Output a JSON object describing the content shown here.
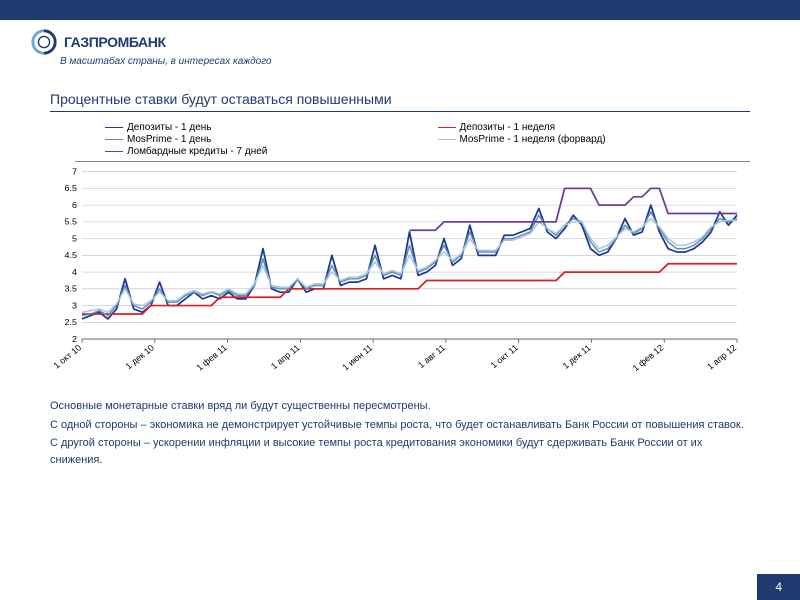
{
  "brand": {
    "name": "ГАЗПРОМБАНК",
    "tagline": "В масштабах страны, в интересах каждого",
    "logo_ring_colors": [
      "#6ba4d9",
      "#1f3a6e"
    ]
  },
  "colors": {
    "primary": "#1f3a6e",
    "grid": "#bfbfbf",
    "bg": "#ffffff"
  },
  "slide_title": "Процентные ставки будут оставаться повышенными",
  "chart": {
    "type": "line",
    "y": {
      "min": 2,
      "max": 7,
      "step": 0.5,
      "ticks": [
        2,
        2.5,
        3,
        3.5,
        4,
        4.5,
        5,
        5.5,
        6,
        6.5,
        7
      ]
    },
    "x_labels": [
      "1 окт 10",
      "1 дек 10",
      "1 фев 11",
      "1 апр 11",
      "1 июн 11",
      "1 авг 11",
      "1 окт 11",
      "1 дек 11",
      "1 фев 12",
      "1 апр 12"
    ],
    "legend_cols": 2,
    "series": [
      {
        "name": "Депозиты - 1 день",
        "color": "#1f3a93",
        "width": 1.8,
        "data": [
          2.6,
          2.7,
          2.8,
          2.6,
          2.9,
          3.8,
          2.9,
          2.8,
          3.0,
          3.7,
          3.0,
          3.0,
          3.2,
          3.4,
          3.2,
          3.3,
          3.2,
          3.4,
          3.2,
          3.2,
          3.6,
          4.7,
          3.5,
          3.4,
          3.4,
          3.8,
          3.4,
          3.5,
          3.5,
          4.5,
          3.6,
          3.7,
          3.7,
          3.8,
          4.8,
          3.8,
          3.9,
          3.8,
          5.2,
          3.9,
          4.0,
          4.2,
          5.0,
          4.2,
          4.4,
          5.4,
          4.5,
          4.5,
          4.5,
          5.1,
          5.1,
          5.2,
          5.3,
          5.9,
          5.2,
          5.0,
          5.3,
          5.7,
          5.4,
          4.7,
          4.5,
          4.6,
          5.0,
          5.6,
          5.1,
          5.2,
          6.0,
          5.2,
          4.7,
          4.6,
          4.6,
          4.7,
          4.9,
          5.2,
          5.8,
          5.4,
          5.7
        ]
      },
      {
        "name": "Депозиты - 1 неделя",
        "color": "#d92121",
        "width": 1.8,
        "data": [
          2.75,
          2.75,
          2.75,
          2.75,
          2.75,
          2.75,
          2.75,
          2.75,
          3.0,
          3.0,
          3.0,
          3.0,
          3.0,
          3.0,
          3.0,
          3.0,
          3.25,
          3.25,
          3.25,
          3.25,
          3.25,
          3.25,
          3.25,
          3.25,
          3.5,
          3.5,
          3.5,
          3.5,
          3.5,
          3.5,
          3.5,
          3.5,
          3.5,
          3.5,
          3.5,
          3.5,
          3.5,
          3.5,
          3.5,
          3.5,
          3.75,
          3.75,
          3.75,
          3.75,
          3.75,
          3.75,
          3.75,
          3.75,
          3.75,
          3.75,
          3.75,
          3.75,
          3.75,
          3.75,
          3.75,
          3.75,
          4.0,
          4.0,
          4.0,
          4.0,
          4.0,
          4.0,
          4.0,
          4.0,
          4.0,
          4.0,
          4.0,
          4.0,
          4.25,
          4.25,
          4.25,
          4.25,
          4.25,
          4.25,
          4.25,
          4.25,
          4.25
        ]
      },
      {
        "name": "MosPrime - 1 день",
        "color": "#5b8db8",
        "width": 1.5,
        "data": [
          2.7,
          2.75,
          2.85,
          2.7,
          3.0,
          3.6,
          3.0,
          2.9,
          3.1,
          3.5,
          3.1,
          3.1,
          3.3,
          3.4,
          3.3,
          3.4,
          3.3,
          3.45,
          3.3,
          3.3,
          3.6,
          4.4,
          3.55,
          3.5,
          3.5,
          3.8,
          3.5,
          3.6,
          3.6,
          4.2,
          3.7,
          3.8,
          3.8,
          3.9,
          4.5,
          3.9,
          4.0,
          3.9,
          4.8,
          4.0,
          4.1,
          4.3,
          4.8,
          4.3,
          4.5,
          5.2,
          4.6,
          4.6,
          4.6,
          5.0,
          5.0,
          5.1,
          5.2,
          5.7,
          5.3,
          5.1,
          5.4,
          5.6,
          5.5,
          4.9,
          4.6,
          4.7,
          5.0,
          5.4,
          5.15,
          5.3,
          5.8,
          5.3,
          4.9,
          4.7,
          4.7,
          4.8,
          5.0,
          5.3,
          5.6,
          5.5,
          5.6
        ]
      },
      {
        "name": "MosPrime - 1 неделя (форвард)",
        "color": "#a8c5dc",
        "width": 1.5,
        "data": [
          2.8,
          2.85,
          2.9,
          2.8,
          3.05,
          3.5,
          3.05,
          3.0,
          3.15,
          3.4,
          3.15,
          3.15,
          3.35,
          3.45,
          3.35,
          3.42,
          3.35,
          3.5,
          3.35,
          3.35,
          3.65,
          4.2,
          3.6,
          3.55,
          3.55,
          3.8,
          3.55,
          3.65,
          3.65,
          4.0,
          3.75,
          3.85,
          3.85,
          3.95,
          4.3,
          3.95,
          4.05,
          3.95,
          4.5,
          4.05,
          4.15,
          4.35,
          4.6,
          4.35,
          4.55,
          5.0,
          4.65,
          4.65,
          4.65,
          4.95,
          4.95,
          5.05,
          5.15,
          5.5,
          5.3,
          5.15,
          5.4,
          5.5,
          5.5,
          5.0,
          4.7,
          4.8,
          5.05,
          5.3,
          5.2,
          5.35,
          5.6,
          5.35,
          5.0,
          4.8,
          4.8,
          4.9,
          5.05,
          5.35,
          5.5,
          5.55,
          5.55
        ]
      },
      {
        "name": "Ломбардные кредиты - 7 дней",
        "color": "#6a3fa0",
        "width": 1.8,
        "data": [
          null,
          null,
          null,
          null,
          null,
          null,
          null,
          null,
          null,
          null,
          null,
          null,
          null,
          null,
          null,
          null,
          null,
          null,
          null,
          null,
          null,
          null,
          null,
          null,
          null,
          null,
          null,
          null,
          null,
          null,
          null,
          null,
          null,
          null,
          null,
          null,
          null,
          null,
          5.25,
          5.25,
          5.25,
          5.25,
          5.5,
          5.5,
          5.5,
          5.5,
          5.5,
          5.5,
          5.5,
          5.5,
          5.5,
          5.5,
          5.5,
          5.5,
          5.5,
          5.5,
          6.5,
          6.5,
          6.5,
          6.5,
          6.0,
          6.0,
          6.0,
          6.0,
          6.25,
          6.25,
          6.5,
          6.5,
          5.75,
          5.75,
          5.75,
          5.75,
          5.75,
          5.75,
          5.75,
          5.75,
          5.75
        ]
      }
    ]
  },
  "body_paragraphs": [
    "Основные монетарные ставки вряд ли будут существенны пересмотрены.",
    "С одной стороны – экономика не демонстрирует устойчивые темпы роста, что будет останавливать Банк России от повышения ставок.",
    "С другой стороны – ускорении инфляции и высокие темпы роста кредитования экономики будут сдерживать Банк России от их снижения."
  ],
  "page_number": "4"
}
